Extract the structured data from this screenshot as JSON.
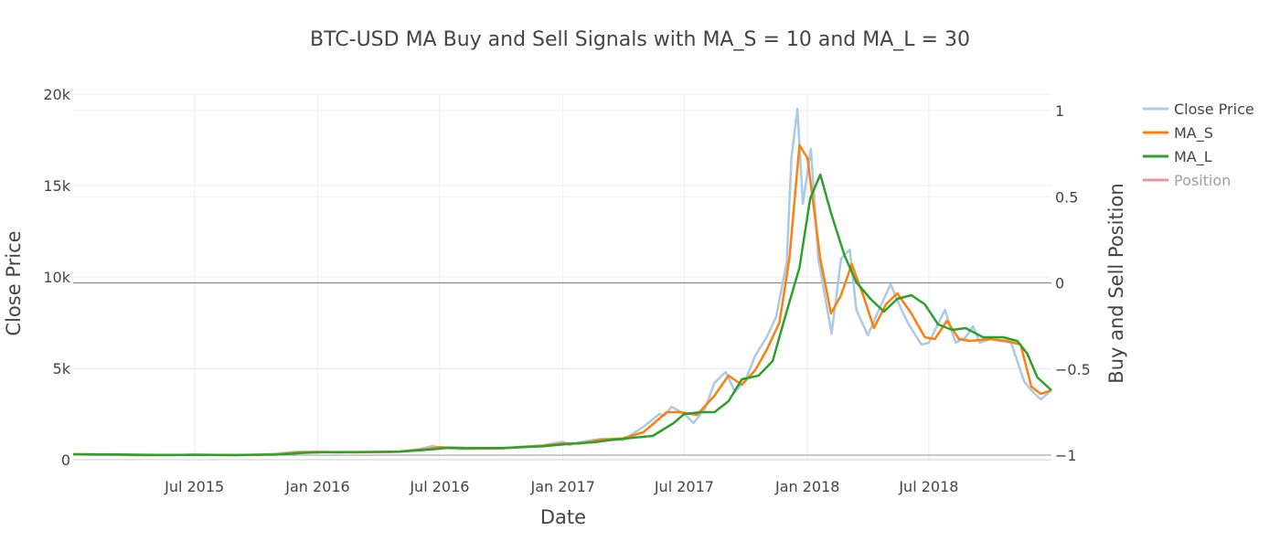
{
  "chart_data": {
    "type": "line",
    "title": "BTC-USD MA Buy and Sell Signals with MA_S = 10 and MA_L = 30",
    "xlabel": "Date",
    "ylabel": "Close Price",
    "y2label": "Buy and Sell Position",
    "xlim": [
      "2015-01-01",
      "2018-12-31"
    ],
    "ylim": [
      0,
      20000
    ],
    "y2lim": [
      -1,
      1
    ],
    "x_ticks": [
      "Jul 2015",
      "Jan 2016",
      "Jul 2016",
      "Jan 2017",
      "Jul 2017",
      "Jan 2018",
      "Jul 2018"
    ],
    "y_ticks": [
      "0",
      "5k",
      "10k",
      "15k",
      "20k"
    ],
    "y2_ticks": [
      "−1",
      "−0.5",
      "0",
      "0.5",
      "1"
    ],
    "grid": true,
    "legend_position": "top-right",
    "colors": {
      "close_price": "#aac9e4",
      "ma_s": "#ff7f0e",
      "ma_l": "#2ca02c",
      "position": "#e9969a"
    },
    "series": [
      {
        "name": "Close Price",
        "x": [
          "2015-01-01",
          "2015-02-01",
          "2015-03-01",
          "2015-04-01",
          "2015-05-01",
          "2015-06-01",
          "2015-07-01",
          "2015-08-01",
          "2015-09-01",
          "2015-10-01",
          "2015-11-01",
          "2015-11-15",
          "2015-12-01",
          "2016-01-01",
          "2016-02-01",
          "2016-03-01",
          "2016-04-01",
          "2016-05-01",
          "2016-06-01",
          "2016-06-20",
          "2016-07-01",
          "2016-08-01",
          "2016-09-01",
          "2016-10-01",
          "2016-11-01",
          "2016-12-01",
          "2017-01-01",
          "2017-01-10",
          "2017-02-01",
          "2017-03-01",
          "2017-03-15",
          "2017-04-01",
          "2017-05-01",
          "2017-05-25",
          "2017-06-01",
          "2017-06-12",
          "2017-07-01",
          "2017-07-15",
          "2017-08-01",
          "2017-08-15",
          "2017-09-01",
          "2017-09-15",
          "2017-10-01",
          "2017-10-15",
          "2017-11-01",
          "2017-11-15",
          "2017-12-01",
          "2017-12-08",
          "2017-12-17",
          "2017-12-25",
          "2018-01-06",
          "2018-01-17",
          "2018-02-06",
          "2018-02-20",
          "2018-03-05",
          "2018-03-15",
          "2018-04-01",
          "2018-04-15",
          "2018-05-05",
          "2018-05-20",
          "2018-06-01",
          "2018-06-20",
          "2018-07-01",
          "2018-07-25",
          "2018-08-10",
          "2018-08-25",
          "2018-09-05",
          "2018-09-15",
          "2018-10-01",
          "2018-10-15",
          "2018-11-01",
          "2018-11-20",
          "2018-12-01",
          "2018-12-15",
          "2018-12-31"
        ],
        "values": [
          290,
          260,
          270,
          240,
          235,
          245,
          285,
          260,
          235,
          270,
          330,
          380,
          430,
          410,
          390,
          415,
          420,
          450,
          580,
          760,
          650,
          580,
          600,
          610,
          720,
          780,
          980,
          800,
          1000,
          1150,
          1100,
          1080,
          1800,
          2500,
          2400,
          2900,
          2500,
          2000,
          2800,
          4200,
          4800,
          3700,
          4400,
          5700,
          6700,
          7800,
          10800,
          16500,
          19200,
          14000,
          17000,
          11000,
          6900,
          11000,
          11500,
          8200,
          6800,
          8000,
          9600,
          8300,
          7400,
          6300,
          6400,
          8200,
          6400,
          6700,
          7300,
          6400,
          6600,
          6500,
          6400,
          4300,
          3800,
          3300,
          3800
        ]
      },
      {
        "name": "MA_S",
        "x": [
          "2015-01-01",
          "2015-03-01",
          "2015-05-01",
          "2015-07-01",
          "2015-09-01",
          "2015-11-01",
          "2015-12-01",
          "2016-01-01",
          "2016-03-01",
          "2016-05-01",
          "2016-06-15",
          "2016-07-01",
          "2016-08-01",
          "2016-10-01",
          "2016-12-01",
          "2017-01-05",
          "2017-01-25",
          "2017-03-01",
          "2017-04-01",
          "2017-05-01",
          "2017-06-05",
          "2017-06-25",
          "2017-07-20",
          "2017-08-15",
          "2017-09-05",
          "2017-09-25",
          "2017-10-15",
          "2017-11-01",
          "2017-11-20",
          "2017-12-05",
          "2017-12-20",
          "2018-01-01",
          "2018-01-20",
          "2018-02-05",
          "2018-02-20",
          "2018-03-08",
          "2018-03-25",
          "2018-04-10",
          "2018-04-28",
          "2018-05-15",
          "2018-06-05",
          "2018-06-25",
          "2018-07-10",
          "2018-07-28",
          "2018-08-15",
          "2018-09-01",
          "2018-10-01",
          "2018-10-25",
          "2018-11-15",
          "2018-12-01",
          "2018-12-15",
          "2018-12-31"
        ],
        "values": [
          300,
          280,
          250,
          270,
          255,
          290,
          400,
          430,
          400,
          430,
          600,
          690,
          610,
          620,
          760,
          900,
          880,
          1100,
          1170,
          1500,
          2600,
          2600,
          2450,
          3500,
          4600,
          4100,
          4900,
          6000,
          7500,
          11000,
          17200,
          16500,
          11000,
          8000,
          9000,
          10700,
          9000,
          7200,
          8500,
          9100,
          8000,
          6700,
          6600,
          7600,
          6600,
          6500,
          6600,
          6500,
          6300,
          4000,
          3600,
          3800
        ]
      },
      {
        "name": "MA_L",
        "x": [
          "2015-01-01",
          "2015-03-01",
          "2015-05-01",
          "2015-07-01",
          "2015-09-01",
          "2015-11-01",
          "2015-12-15",
          "2016-01-15",
          "2016-03-01",
          "2016-05-01",
          "2016-06-20",
          "2016-07-15",
          "2016-08-15",
          "2016-10-01",
          "2016-12-01",
          "2017-01-15",
          "2017-02-15",
          "2017-03-15",
          "2017-04-15",
          "2017-05-15",
          "2017-06-15",
          "2017-07-01",
          "2017-07-25",
          "2017-08-15",
          "2017-09-05",
          "2017-09-25",
          "2017-10-20",
          "2017-11-10",
          "2017-11-30",
          "2017-12-20",
          "2018-01-05",
          "2018-01-20",
          "2018-02-05",
          "2018-02-25",
          "2018-03-15",
          "2018-04-05",
          "2018-04-25",
          "2018-05-15",
          "2018-06-05",
          "2018-06-25",
          "2018-07-15",
          "2018-08-05",
          "2018-08-25",
          "2018-09-20",
          "2018-10-20",
          "2018-11-10",
          "2018-11-25",
          "2018-12-10",
          "2018-12-31"
        ],
        "values": [
          300,
          290,
          260,
          265,
          255,
          280,
          380,
          410,
          420,
          440,
          560,
          660,
          640,
          640,
          730,
          880,
          950,
          1080,
          1200,
          1300,
          2000,
          2500,
          2600,
          2600,
          3200,
          4400,
          4600,
          5400,
          8000,
          10500,
          14300,
          15600,
          13500,
          11200,
          9700,
          8800,
          8100,
          8800,
          9000,
          8500,
          7400,
          7100,
          7200,
          6700,
          6700,
          6500,
          5800,
          4500,
          3800
        ]
      },
      {
        "name": "Position",
        "x": [],
        "values": []
      }
    ]
  }
}
